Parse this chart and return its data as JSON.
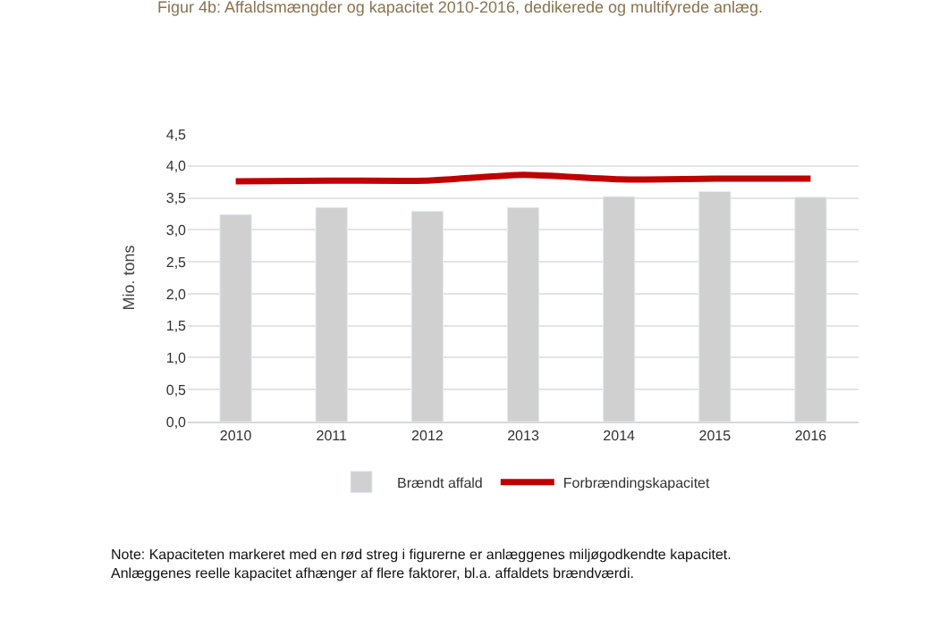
{
  "chart_data": {
    "type": "bar",
    "title": "Figur 4b: Affaldsmængder og kapacitet 2010-2016, dedikerede og multifyrede anlæg.",
    "ylabel": "Mio. tons",
    "categories": [
      "2010",
      "2011",
      "2012",
      "2013",
      "2014",
      "2015",
      "2016"
    ],
    "series": [
      {
        "name": "Brændt affald",
        "color": "#d0d0d0",
        "values": [
          3.24,
          3.35,
          3.29,
          3.35,
          3.52,
          3.6,
          3.51
        ]
      },
      {
        "name": "Forbrændingskapacitet",
        "type": "line",
        "color": "#c00000",
        "values": [
          3.76,
          3.77,
          3.77,
          3.86,
          3.79,
          3.8,
          3.8
        ]
      }
    ],
    "ylim": [
      0,
      4.5
    ],
    "yticks": [
      {
        "value": 0,
        "label": "0,0"
      },
      {
        "value": 0.5,
        "label": "0,5"
      },
      {
        "value": 1,
        "label": "1,0"
      },
      {
        "value": 1.5,
        "label": "1,5"
      },
      {
        "value": 2,
        "label": "2,0"
      },
      {
        "value": 2.5,
        "label": "2,5"
      },
      {
        "value": 3,
        "label": "3,0"
      },
      {
        "value": 3.5,
        "label": "3,5"
      },
      {
        "value": 4,
        "label": "4,0"
      },
      {
        "value": 4.5,
        "label": "4,5"
      }
    ],
    "grid": "y",
    "legend": "bottom",
    "annotations": [
      "Note: Kapaciteten markeret med en rød streg i figurerne er anlæggenes miljøgodkendte kapacitet.\nAnlæggenes reelle kapacitet afhænger af flere faktorer, bl.a. affaldets brændværdi."
    ]
  }
}
